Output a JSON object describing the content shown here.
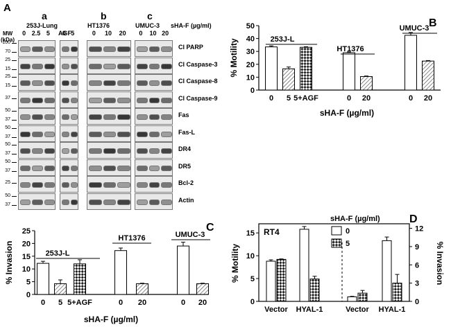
{
  "panel_a": {
    "letter": "A",
    "sub_a": "a",
    "sub_b": "b",
    "sub_c": "c",
    "mw_label_1": "MW",
    "mw_label_2": "(kDa)",
    "cell_253j": "253J-Lung",
    "cell_agf": "AGF",
    "cell_ht1376": "HT1376",
    "cell_umuc3": "UMUC-3",
    "treatment_label": "sHA-F (µg/ml)",
    "doses_253j": [
      "0",
      "2.5",
      "5"
    ],
    "doses_agf": [
      "0",
      "5"
    ],
    "doses_ht": [
      "0",
      "10",
      "20"
    ],
    "doses_umuc": [
      "0",
      "10",
      "20"
    ],
    "rows": [
      {
        "label": "Cl PARP",
        "mw": [
          "100",
          "70"
        ]
      },
      {
        "label": "Cl Caspase-3",
        "mw": [
          "25",
          "15"
        ]
      },
      {
        "label": "Cl Caspase-8",
        "mw": [
          "25",
          "15"
        ]
      },
      {
        "label": "Cl Caspase-9",
        "mw": [
          "37"
        ]
      },
      {
        "label": "Fas",
        "mw": [
          "50",
          "37"
        ]
      },
      {
        "label": "Fas-L",
        "mw": [
          "50",
          "37"
        ]
      },
      {
        "label": "DR4",
        "mw": [
          "50",
          "37"
        ]
      },
      {
        "label": "DR5",
        "mw": [
          "50",
          "37"
        ]
      },
      {
        "label": "Bcl-2",
        "mw": [
          "25"
        ]
      },
      {
        "label": "Actin",
        "mw": [
          "50",
          "37"
        ]
      }
    ]
  },
  "chart_data": [
    {
      "panel": "B",
      "type": "bar",
      "ylabel": "% Motility",
      "xlabel": "sHA-F (µg/ml)",
      "ylim": [
        0,
        50
      ],
      "yticks": [
        "0",
        "10",
        "20",
        "30",
        "40",
        "50"
      ],
      "group_labels": [
        "253J-L",
        "HT1376",
        "UMUC-3"
      ],
      "bars": [
        {
          "label": "0",
          "value": 33.5,
          "err": 0.8,
          "pattern": "white"
        },
        {
          "label": "5",
          "value": 16.5,
          "err": 1.4,
          "pattern": "hatch"
        },
        {
          "label": "5+AGF",
          "value": 33.2,
          "err": 0.4,
          "pattern": "check"
        },
        {
          "label": "0",
          "value": 29.0,
          "err": 0.6,
          "pattern": "white"
        },
        {
          "label": "20",
          "value": 10.5,
          "err": 0.4,
          "pattern": "hatch"
        },
        {
          "label": "0",
          "value": 42.5,
          "err": 2.2,
          "pattern": "white"
        },
        {
          "label": "20",
          "value": 22.5,
          "err": 0.4,
          "pattern": "hatch"
        }
      ]
    },
    {
      "panel": "C",
      "type": "bar",
      "ylabel": "% Invasion",
      "xlabel": "sHA-F (µg/ml)",
      "ylim": [
        0,
        25
      ],
      "yticks": [
        "0",
        "5",
        "10",
        "15",
        "20",
        "25"
      ],
      "group_labels": [
        "253J-L",
        "HT1376",
        "UMUC-3"
      ],
      "bars": [
        {
          "label": "0",
          "value": 12.2,
          "err": 0.8,
          "pattern": "white"
        },
        {
          "label": "5",
          "value": 4.2,
          "err": 1.5,
          "pattern": "hatch"
        },
        {
          "label": "5+AGF",
          "value": 12.0,
          "err": 1.6,
          "pattern": "check"
        },
        {
          "label": "0",
          "value": 17.2,
          "err": 1.0,
          "pattern": "white"
        },
        {
          "label": "20",
          "value": 4.2,
          "err": 0.2,
          "pattern": "hatch"
        },
        {
          "label": "0",
          "value": 19.0,
          "err": 1.5,
          "pattern": "white"
        },
        {
          "label": "20",
          "value": 4.2,
          "err": 0.2,
          "pattern": "hatch"
        }
      ]
    },
    {
      "panel": "D",
      "type": "bar",
      "title": "RT4",
      "ylabel": "% Motility",
      "y2label": "% Invasion",
      "ylim": [
        0,
        17
      ],
      "y2lim": [
        0,
        12.75
      ],
      "yticks": [
        "0",
        "5",
        "10",
        "15"
      ],
      "y2ticks": [
        "0",
        "3",
        "6",
        "9",
        "12"
      ],
      "legend_title": "sHA-F (µg/ml)",
      "legend": [
        "0",
        "5"
      ],
      "categories": [
        "Vector",
        "HYAL-1",
        "Vector",
        "HYAL-1"
      ],
      "series": [
        {
          "name": "0",
          "values": [
            8.8,
            15.8,
            1.0,
            13.3
          ],
          "err": [
            0.3,
            0.6,
            0.1,
            0.8
          ]
        },
        {
          "name": "5",
          "values": [
            9.2,
            4.9,
            1.8,
            4.0
          ],
          "err": [
            0.1,
            0.6,
            0.6,
            1.9
          ]
        }
      ]
    }
  ]
}
